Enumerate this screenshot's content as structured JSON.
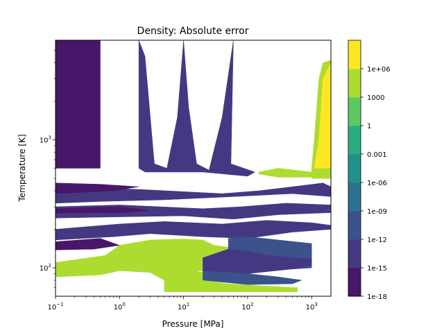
{
  "chart_data": {
    "type": "heatmap",
    "title": "Density: Absolute error",
    "xlabel": "Pressure [MPa]",
    "ylabel": "Temperature [K]",
    "xscale": "log",
    "yscale": "log",
    "xlim": [
      0.1,
      2000
    ],
    "ylim": [
      60,
      6000
    ],
    "x_ticks": [
      {
        "value": 0.1,
        "base": "10",
        "exp": "−1"
      },
      {
        "value": 1,
        "base": "10",
        "exp": "0"
      },
      {
        "value": 10,
        "base": "10",
        "exp": "1"
      },
      {
        "value": 100,
        "base": "10",
        "exp": "2"
      },
      {
        "value": 1000,
        "base": "10",
        "exp": "3"
      }
    ],
    "y_ticks": [
      {
        "value": 100,
        "base": "10",
        "exp": "2"
      },
      {
        "value": 1000,
        "base": "10",
        "exp": "3"
      }
    ],
    "colorbar": {
      "scale": "log",
      "levels": [
        1e-18,
        1e-15,
        1e-12,
        1e-09,
        1e-06,
        0.001,
        1,
        1000,
        1000000.0
      ],
      "tick_labels": [
        "1e-18",
        "1e-15",
        "1e-12",
        "1e-09",
        "1e-06",
        "0.001",
        "1",
        "1000",
        "1e+06"
      ],
      "colors": [
        "#481769",
        "#453882",
        "#3b528b",
        "#2c728e",
        "#21918c",
        "#28ae80",
        "#5ec962",
        "#addc30",
        "#fde725"
      ]
    },
    "regions": [
      {
        "band": 0,
        "polygon": [
          [
            0.1,
            6000
          ],
          [
            0.5,
            6000
          ],
          [
            0.5,
            600
          ],
          [
            0.1,
            600
          ]
        ]
      },
      {
        "band": 1,
        "polygon": [
          [
            2,
            6000
          ],
          [
            2.5,
            4500
          ],
          [
            3.5,
            650
          ],
          [
            5.5,
            600
          ],
          [
            8,
            1500
          ],
          [
            10,
            6000
          ],
          [
            12,
            1800
          ],
          [
            16,
            650
          ],
          [
            25,
            580
          ],
          [
            40,
            1500
          ],
          [
            60,
            6000
          ],
          [
            55,
            650
          ],
          [
            130,
            560
          ],
          [
            100,
            520
          ],
          [
            20,
            560
          ],
          [
            2.5,
            560
          ],
          [
            2,
            600
          ]
        ]
      },
      {
        "band": 7,
        "polygon": [
          [
            1000,
            600
          ],
          [
            1100,
            1000
          ],
          [
            1300,
            3000
          ],
          [
            1500,
            4000
          ],
          [
            2000,
            4200
          ],
          [
            2000,
            500
          ],
          [
            1000,
            500
          ]
        ]
      },
      {
        "band": 8,
        "polygon": [
          [
            1100,
            600
          ],
          [
            1300,
            1000
          ],
          [
            1500,
            3000
          ],
          [
            2000,
            4000
          ],
          [
            2000,
            600
          ]
        ]
      },
      {
        "band": 1,
        "polygon": [
          [
            0.1,
            430
          ],
          [
            2,
            410
          ],
          [
            40,
            380
          ],
          [
            150,
            400
          ],
          [
            500,
            430
          ],
          [
            1500,
            460
          ],
          [
            2000,
            430
          ],
          [
            2000,
            360
          ],
          [
            500,
            380
          ],
          [
            60,
            360
          ],
          [
            5,
            340
          ],
          [
            0.5,
            330
          ],
          [
            0.1,
            320
          ]
        ]
      },
      {
        "band": 0,
        "polygon": [
          [
            0.1,
            380
          ],
          [
            0.8,
            400
          ],
          [
            2,
            430
          ],
          [
            0.5,
            450
          ],
          [
            0.1,
            460
          ]
        ]
      },
      {
        "band": 1,
        "polygon": [
          [
            0.1,
            300
          ],
          [
            1,
            310
          ],
          [
            20,
            290
          ],
          [
            80,
            300
          ],
          [
            400,
            320
          ],
          [
            2000,
            310
          ],
          [
            2000,
            270
          ],
          [
            300,
            260
          ],
          [
            60,
            240
          ],
          [
            10,
            255
          ],
          [
            1,
            250
          ],
          [
            0.1,
            245
          ]
        ]
      },
      {
        "band": 0,
        "polygon": [
          [
            0.1,
            290
          ],
          [
            1,
            300
          ],
          [
            3,
            280
          ],
          [
            1,
            270
          ],
          [
            0.1,
            268
          ]
        ]
      },
      {
        "band": 1,
        "polygon": [
          [
            0.1,
            200
          ],
          [
            1,
            220
          ],
          [
            5,
            230
          ],
          [
            40,
            220
          ],
          [
            200,
            235
          ],
          [
            1000,
            225
          ],
          [
            2000,
            215
          ],
          [
            2000,
            200
          ],
          [
            500,
            190
          ],
          [
            100,
            170
          ],
          [
            20,
            175
          ],
          [
            3,
            185
          ],
          [
            0.8,
            175
          ],
          [
            0.1,
            165
          ]
        ]
      },
      {
        "band": 0,
        "polygon": [
          [
            0.1,
            160
          ],
          [
            0.5,
            170
          ],
          [
            1,
            150
          ],
          [
            0.4,
            140
          ],
          [
            0.1,
            138
          ]
        ]
      },
      {
        "band": 7,
        "polygon": [
          [
            0.1,
            110
          ],
          [
            0.6,
            125
          ],
          [
            1,
            150
          ],
          [
            3,
            165
          ],
          [
            10,
            168
          ],
          [
            20,
            165
          ],
          [
            30,
            150
          ],
          [
            50,
            145
          ],
          [
            50,
            100
          ],
          [
            20,
            95
          ],
          [
            8,
            90
          ],
          [
            5,
            80
          ],
          [
            3,
            92
          ],
          [
            1,
            95
          ],
          [
            0.5,
            88
          ],
          [
            0.1,
            85
          ]
        ]
      },
      {
        "band": 2,
        "polygon": [
          [
            50,
            170
          ],
          [
            100,
            175
          ],
          [
            300,
            165
          ],
          [
            1000,
            155
          ],
          [
            1000,
            100
          ],
          [
            200,
            95
          ],
          [
            80,
            110
          ],
          [
            50,
            100
          ]
        ]
      },
      {
        "band": 1,
        "polygon": [
          [
            20,
            120
          ],
          [
            50,
            140
          ],
          [
            100,
            135
          ],
          [
            200,
            125
          ],
          [
            500,
            120
          ],
          [
            1000,
            118
          ],
          [
            1000,
            105
          ],
          [
            500,
            98
          ],
          [
            100,
            90
          ],
          [
            20,
            85
          ]
        ]
      },
      {
        "band": 7,
        "polygon": [
          [
            5,
            95
          ],
          [
            10,
            97
          ],
          [
            20,
            92
          ],
          [
            30,
            88
          ],
          [
            20,
            80
          ],
          [
            50,
            75
          ],
          [
            200,
            72
          ],
          [
            600,
            70
          ],
          [
            600,
            65
          ],
          [
            5,
            65
          ]
        ]
      },
      {
        "band": 2,
        "polygon": [
          [
            20,
            95
          ],
          [
            100,
            90
          ],
          [
            300,
            85
          ],
          [
            700,
            80
          ],
          [
            500,
            75
          ],
          [
            100,
            74
          ],
          [
            20,
            80
          ]
        ]
      },
      {
        "band": 7,
        "polygon": [
          [
            150,
            560
          ],
          [
            300,
            600
          ],
          [
            1000,
            560
          ],
          [
            1000,
            510
          ],
          [
            300,
            510
          ],
          [
            150,
            540
          ]
        ]
      }
    ]
  }
}
